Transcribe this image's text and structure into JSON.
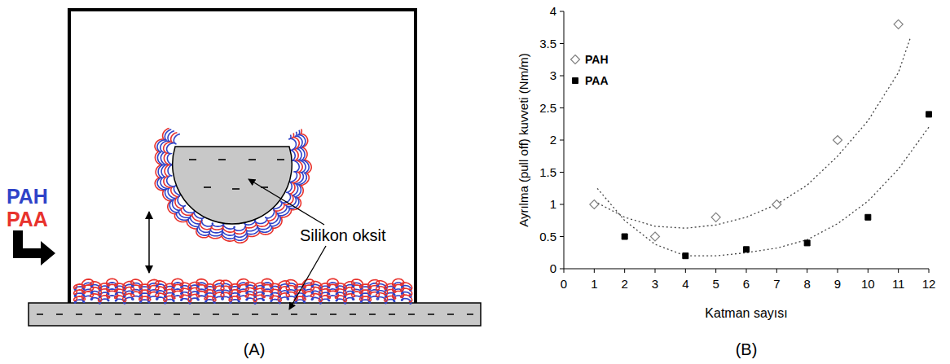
{
  "panels": [
    "(A)",
    "(B)"
  ],
  "diagram": {
    "polymers": [
      {
        "name": "PAH",
        "color": "#2f43c8"
      },
      {
        "name": "PAA",
        "color": "#e8322c"
      }
    ],
    "annotation": "Silikon oksit"
  },
  "chart_data": {
    "type": "scatter",
    "x_label": "Katman sayısı",
    "y_label": "Ayrılma (pull off) kuvveti (Nm/m)",
    "xlim": [
      0,
      12
    ],
    "xticks": [
      0,
      1,
      2,
      3,
      4,
      5,
      6,
      7,
      8,
      9,
      10,
      11,
      12
    ],
    "ylim": [
      0,
      4
    ],
    "yticks": [
      0,
      0.5,
      1,
      1.5,
      2,
      2.5,
      3,
      3.5,
      4
    ],
    "grid": false,
    "legend": "top-left",
    "series": [
      {
        "name": "PAH",
        "type": "scatter",
        "marker": "diamond-open",
        "color": "#808080",
        "x": [
          1,
          3,
          5,
          7,
          9,
          11
        ],
        "values": [
          1,
          0.5,
          0.8,
          1,
          2,
          3.8
        ]
      },
      {
        "name": "PAA",
        "type": "scatter",
        "marker": "square",
        "color": "#000000",
        "x": [
          2,
          4,
          6,
          8,
          10,
          12
        ],
        "values": [
          0.5,
          0.2,
          0.3,
          0.4,
          0.8,
          2.4
        ]
      },
      {
        "type": "line",
        "line_style": "dotted",
        "color": "#444444",
        "x": [
          1,
          2,
          3,
          4,
          5,
          6,
          7,
          8,
          9,
          10,
          11,
          11.4
        ],
        "values": [
          1.05,
          0.8,
          0.66,
          0.63,
          0.68,
          0.8,
          1.0,
          1.3,
          1.75,
          2.3,
          3.05,
          3.6
        ]
      },
      {
        "type": "line",
        "line_style": "dotted",
        "color": "#444444",
        "x": [
          1.1,
          2,
          3,
          4,
          5,
          6,
          7,
          8,
          9,
          10,
          11,
          12
        ],
        "values": [
          1.25,
          0.75,
          0.38,
          0.2,
          0.2,
          0.25,
          0.32,
          0.45,
          0.7,
          1.05,
          1.55,
          2.2
        ]
      }
    ]
  }
}
